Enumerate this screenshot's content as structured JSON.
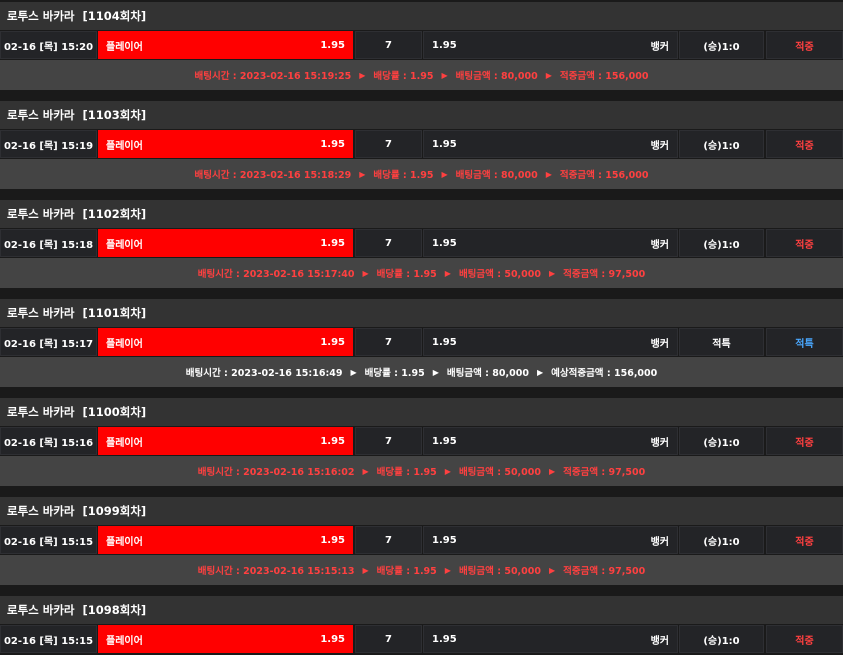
{
  "colors": {
    "win": "#ff4040",
    "refund": "#4aa8ff",
    "pick": "#ff0000"
  },
  "labels": {
    "bet_time": "배팅시간",
    "odds": "배당률",
    "bet_amount": "배팅금액",
    "win_amount": "적중금액",
    "expected_win_amount": "예상적중금액",
    "arrow_icon": "▶"
  },
  "bets": [
    {
      "game": "로투스 바카라",
      "round": "[1104회차]",
      "date": "02-16 [목] 15:20",
      "pick": "플레이어",
      "pick_odds": "1.95",
      "num": "7",
      "odds": "1.95",
      "banker": "뱅커",
      "result": "(승)1:0",
      "status": "적중",
      "status_type": "win",
      "bet_time": "2023-02-16 15:19:25",
      "rate": "1.95",
      "amount": "80,000",
      "win_label": "적중금액",
      "win": "156,000"
    },
    {
      "game": "로투스 바카라",
      "round": "[1103회차]",
      "date": "02-16 [목] 15:19",
      "pick": "플레이어",
      "pick_odds": "1.95",
      "num": "7",
      "odds": "1.95",
      "banker": "뱅커",
      "result": "(승)1:0",
      "status": "적중",
      "status_type": "win",
      "bet_time": "2023-02-16 15:18:29",
      "rate": "1.95",
      "amount": "80,000",
      "win_label": "적중금액",
      "win": "156,000"
    },
    {
      "game": "로투스 바카라",
      "round": "[1102회차]",
      "date": "02-16 [목] 15:18",
      "pick": "플레이어",
      "pick_odds": "1.95",
      "num": "7",
      "odds": "1.95",
      "banker": "뱅커",
      "result": "(승)1:0",
      "status": "적중",
      "status_type": "win",
      "bet_time": "2023-02-16 15:17:40",
      "rate": "1.95",
      "amount": "50,000",
      "win_label": "적중금액",
      "win": "97,500"
    },
    {
      "game": "로투스 바카라",
      "round": "[1101회차]",
      "date": "02-16 [목] 15:17",
      "pick": "플레이어",
      "pick_odds": "1.95",
      "num": "7",
      "odds": "1.95",
      "banker": "뱅커",
      "result": "적특",
      "status": "적특",
      "status_type": "refund",
      "bet_time": "2023-02-16 15:16:49",
      "rate": "1.95",
      "amount": "80,000",
      "win_label": "예상적중금액",
      "win": "156,000"
    },
    {
      "game": "로투스 바카라",
      "round": "[1100회차]",
      "date": "02-16 [목] 15:16",
      "pick": "플레이어",
      "pick_odds": "1.95",
      "num": "7",
      "odds": "1.95",
      "banker": "뱅커",
      "result": "(승)1:0",
      "status": "적중",
      "status_type": "win",
      "bet_time": "2023-02-16 15:16:02",
      "rate": "1.95",
      "amount": "50,000",
      "win_label": "적중금액",
      "win": "97,500"
    },
    {
      "game": "로투스 바카라",
      "round": "[1099회차]",
      "date": "02-16 [목] 15:15",
      "pick": "플레이어",
      "pick_odds": "1.95",
      "num": "7",
      "odds": "1.95",
      "banker": "뱅커",
      "result": "(승)1:0",
      "status": "적중",
      "status_type": "win",
      "bet_time": "2023-02-16 15:15:13",
      "rate": "1.95",
      "amount": "50,000",
      "win_label": "적중금액",
      "win": "97,500"
    },
    {
      "game": "로투스 바카라",
      "round": "[1098회차]",
      "date": "02-16 [목] 15:15",
      "pick": "플레이어",
      "pick_odds": "1.95",
      "num": "7",
      "odds": "1.95",
      "banker": "뱅커",
      "result": "(승)1:0",
      "status": "적중",
      "status_type": "win"
    }
  ]
}
